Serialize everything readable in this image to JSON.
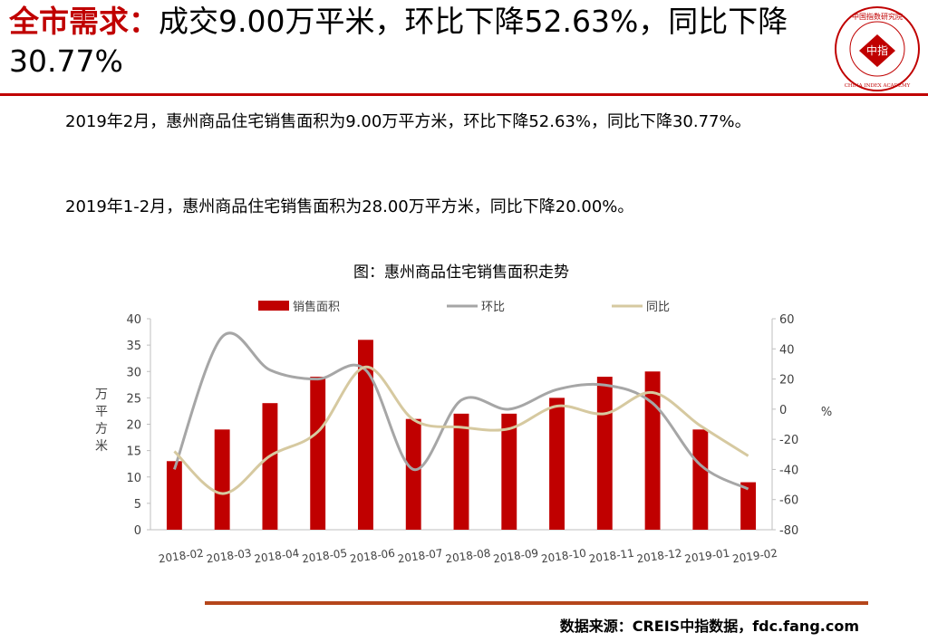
{
  "slide": {
    "title_highlight": "全市需求：",
    "title_rest": "成交9.00万平米，环比下降52.63%，同比下降30.77%",
    "paragraph1": "2019年2月，惠州商品住宅销售面积为9.00万平方米，环比下降52.63%，同比下降30.77%。",
    "paragraph2": "2019年1-2月，惠州商品住宅销售面积为28.00万平方米，同比下降20.00%。",
    "source": "数据来源：CREIS中指数据，fdc.fang.com",
    "logo": {
      "icon": "china-index-academy-seal",
      "top_text": "中国指数研究院",
      "center_text": "中指",
      "bottom_text": "CHINA INDEX ACADEMY"
    },
    "colors": {
      "accent": "#c00000",
      "bar": "#c00000",
      "mom_line": "#a6a6a6",
      "yoy_line": "#d6c9a0",
      "rule_bottom": "#b5461b"
    }
  },
  "chart_data": {
    "type": "bar",
    "title": "图：惠州商品住宅销售面积走势",
    "categories": [
      "2018-02",
      "2018-03",
      "2018-04",
      "2018-05",
      "2018-06",
      "2018-07",
      "2018-08",
      "2018-09",
      "2018-10",
      "2018-11",
      "2018-12",
      "2019-01",
      "2019-02"
    ],
    "series": [
      {
        "name": "销售面积",
        "type": "bar",
        "axis": "left",
        "color": "#c00000",
        "values": [
          13,
          19,
          24,
          29,
          36,
          21,
          22,
          22,
          25,
          29,
          30,
          19,
          9
        ]
      },
      {
        "name": "环比",
        "type": "line",
        "axis": "right",
        "color": "#a6a6a6",
        "values": [
          -40,
          48,
          26,
          20,
          26,
          -40,
          6,
          0,
          13,
          16,
          4,
          -37,
          -53
        ]
      },
      {
        "name": "同比",
        "type": "line",
        "axis": "right",
        "color": "#d6c9a0",
        "values": [
          -28,
          -56,
          -31,
          -15,
          28,
          -7,
          -12,
          -13,
          2,
          -3,
          11,
          -11,
          -31
        ]
      }
    ],
    "ylabel_left": "万平方米",
    "ylabel_right": "%",
    "ylim_left": [
      0,
      40
    ],
    "ylim_right": [
      -80,
      60
    ],
    "yticks_left": [
      0,
      5,
      10,
      15,
      20,
      25,
      30,
      35,
      40
    ],
    "yticks_right": [
      -80,
      -60,
      -40,
      -20,
      0,
      20,
      40,
      60
    ],
    "grid": false,
    "legend_position": "top"
  }
}
